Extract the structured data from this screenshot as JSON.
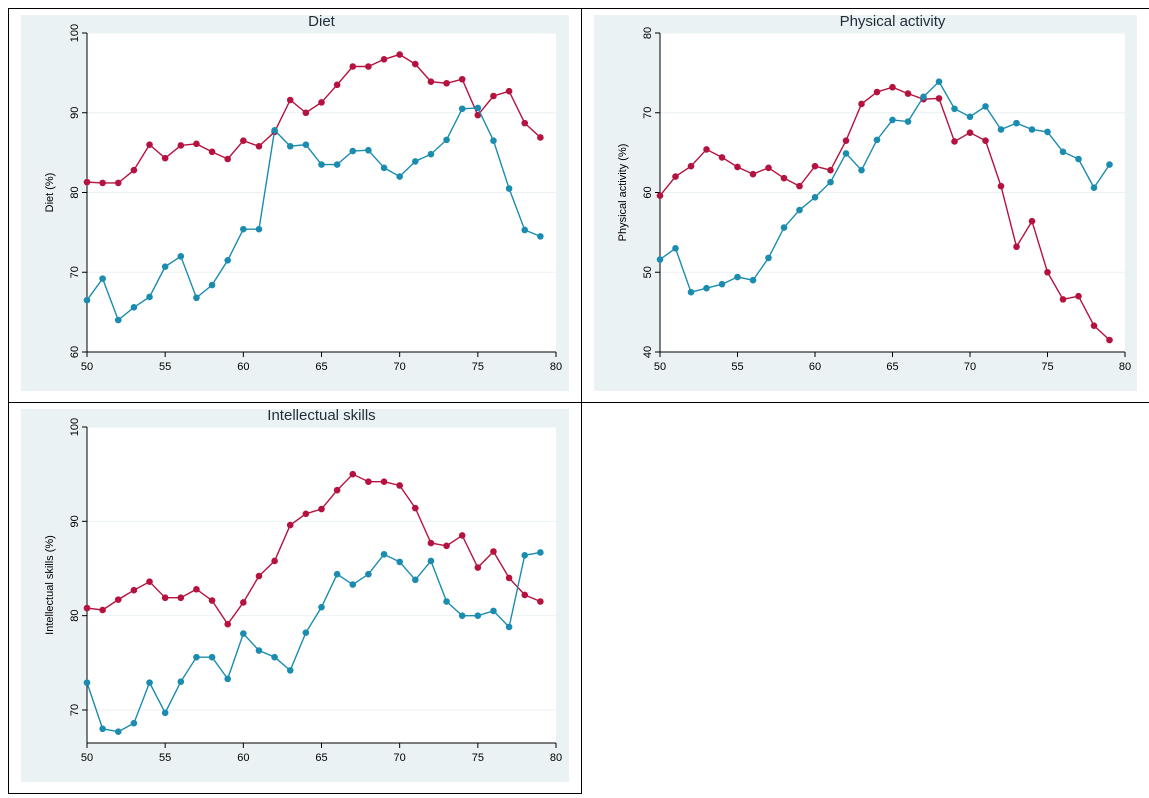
{
  "chart_data": [
    {
      "type": "line",
      "title": "Diet",
      "ylabel": "Diet (%)",
      "xlabel": "",
      "xlim": [
        50,
        80
      ],
      "ylim": [
        60,
        100
      ],
      "x_ticks": [
        50,
        55,
        60,
        65,
        70,
        75,
        80
      ],
      "y_ticks": [
        60,
        70,
        80,
        90,
        100
      ],
      "grid": true,
      "x": [
        50,
        51,
        52,
        53,
        54,
        55,
        56,
        57,
        58,
        59,
        60,
        61,
        62,
        63,
        64,
        65,
        66,
        67,
        68,
        69,
        70,
        71,
        72,
        73,
        74,
        75,
        76,
        77,
        78,
        79
      ],
      "series": [
        {
          "color": "#b5123f",
          "values": [
            81.3,
            81.2,
            81.2,
            82.8,
            86.0,
            84.3,
            85.9,
            86.1,
            85.1,
            84.2,
            86.5,
            85.8,
            87.6,
            91.6,
            90.0,
            91.3,
            93.5,
            95.8,
            95.8,
            96.7,
            97.3,
            96.1,
            93.9,
            93.7,
            94.2,
            89.7,
            92.1,
            92.7,
            88.7,
            86.9
          ]
        },
        {
          "color": "#1a8cb0",
          "values": [
            66.5,
            69.2,
            64.0,
            65.6,
            66.9,
            70.7,
            72.0,
            66.8,
            68.4,
            71.5,
            75.4,
            75.4,
            87.8,
            85.8,
            86.0,
            83.5,
            83.5,
            85.2,
            85.3,
            83.1,
            82.0,
            83.9,
            84.8,
            86.6,
            90.5,
            90.6,
            86.5,
            80.5,
            75.3,
            74.5
          ]
        }
      ]
    },
    {
      "type": "line",
      "title": "Physical activity",
      "ylabel": "Physical activity (%)",
      "xlabel": "",
      "xlim": [
        50,
        80
      ],
      "ylim": [
        40,
        80
      ],
      "x_ticks": [
        50,
        55,
        60,
        65,
        70,
        75,
        80
      ],
      "y_ticks": [
        40,
        50,
        60,
        70,
        80
      ],
      "grid": true,
      "x": [
        50,
        51,
        52,
        53,
        54,
        55,
        56,
        57,
        58,
        59,
        60,
        61,
        62,
        63,
        64,
        65,
        66,
        67,
        68,
        69,
        70,
        71,
        72,
        73,
        74,
        75,
        76,
        77,
        78,
        79
      ],
      "series": [
        {
          "color": "#b5123f",
          "values": [
            59.6,
            62.0,
            63.3,
            65.4,
            64.4,
            63.2,
            62.3,
            63.1,
            61.8,
            60.8,
            63.3,
            62.8,
            66.5,
            71.1,
            72.6,
            73.2,
            72.4,
            71.7,
            71.8,
            66.4,
            67.5,
            66.5,
            60.8,
            53.2,
            56.4,
            50.0,
            46.6,
            47.0,
            43.3,
            41.5
          ]
        },
        {
          "color": "#1a8cb0",
          "values": [
            51.6,
            53.0,
            47.5,
            48.0,
            48.5,
            49.4,
            49.0,
            51.8,
            55.6,
            57.8,
            59.4,
            61.3,
            64.9,
            62.8,
            66.6,
            69.1,
            68.9,
            72.0,
            73.9,
            70.5,
            69.5,
            70.8,
            67.9,
            68.7,
            67.9,
            67.6,
            65.1,
            64.2,
            60.6,
            63.5
          ]
        }
      ]
    },
    {
      "type": "line",
      "title": "Intellectual skills",
      "ylabel": "Intellectual skills (%)",
      "xlabel": "",
      "xlim": [
        50,
        80
      ],
      "ylim": [
        66.5,
        100
      ],
      "x_ticks": [
        50,
        55,
        60,
        65,
        70,
        75,
        80
      ],
      "y_ticks": [
        70,
        80,
        90,
        100
      ],
      "grid": true,
      "x": [
        50,
        51,
        52,
        53,
        54,
        55,
        56,
        57,
        58,
        59,
        60,
        61,
        62,
        63,
        64,
        65,
        66,
        67,
        68,
        69,
        70,
        71,
        72,
        73,
        74,
        75,
        76,
        77,
        78,
        79
      ],
      "series": [
        {
          "color": "#b5123f",
          "values": [
            80.8,
            80.6,
            81.7,
            82.7,
            83.6,
            81.9,
            81.9,
            82.8,
            81.6,
            79.1,
            81.4,
            84.2,
            85.8,
            89.6,
            90.8,
            91.3,
            93.3,
            95.0,
            94.2,
            94.2,
            93.8,
            91.4,
            87.7,
            87.4,
            88.5,
            85.1,
            86.8,
            84.0,
            82.2,
            81.5
          ]
        },
        {
          "color": "#1a8cb0",
          "values": [
            72.9,
            68.0,
            67.7,
            68.6,
            72.9,
            69.7,
            73.0,
            75.6,
            75.6,
            73.3,
            78.1,
            76.3,
            75.6,
            74.2,
            78.2,
            80.9,
            84.4,
            83.3,
            84.4,
            86.5,
            85.7,
            83.8,
            85.8,
            81.5,
            80.0,
            80.0,
            80.5,
            78.8,
            86.4,
            86.7
          ]
        }
      ]
    }
  ]
}
